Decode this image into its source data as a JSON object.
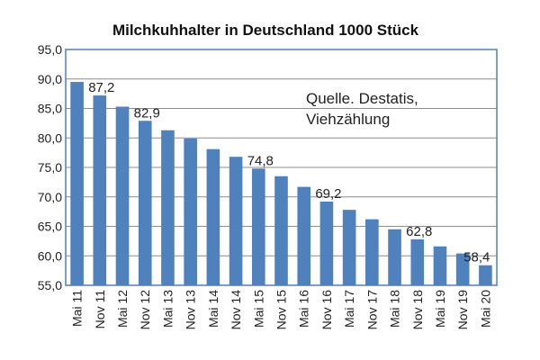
{
  "chart_data": {
    "type": "bar",
    "title": "Milchkuhhalter  in Deutschland 1000 Stück",
    "xlabel": "",
    "ylabel": "",
    "ylim": [
      55,
      95
    ],
    "ytick_step": 5,
    "grid": true,
    "bar_color": "#4f81bd",
    "frame_color": "#4d7fc1",
    "categories": [
      "Mai 11",
      "Nov 11",
      "Mai 12",
      "Nov 12",
      "Mai 13",
      "Nov 13",
      "Mai 14",
      "Nov 14",
      "Mai 15",
      "Nov 15",
      "Mai 16",
      "Nov 16",
      "Mai 17",
      "Nov 17",
      "Mai 18",
      "Nov 18",
      "Mai 19",
      "Nov 19",
      "Mai 20"
    ],
    "values": [
      89.5,
      87.2,
      85.3,
      82.9,
      81.3,
      79.9,
      78.1,
      76.8,
      74.8,
      73.5,
      71.7,
      69.2,
      67.8,
      66.2,
      64.5,
      62.8,
      61.6,
      60.4,
      58.4
    ],
    "data_labels": [
      {
        "index": 1,
        "text": "87,2"
      },
      {
        "index": 3,
        "text": "82,9"
      },
      {
        "index": 8,
        "text": "74,8"
      },
      {
        "index": 11,
        "text": "69,2"
      },
      {
        "index": 15,
        "text": "62,8"
      },
      {
        "index": 18,
        "text": "58,4"
      }
    ],
    "annotation": [
      "Quelle. Destatis,",
      "Viehzählung"
    ]
  }
}
